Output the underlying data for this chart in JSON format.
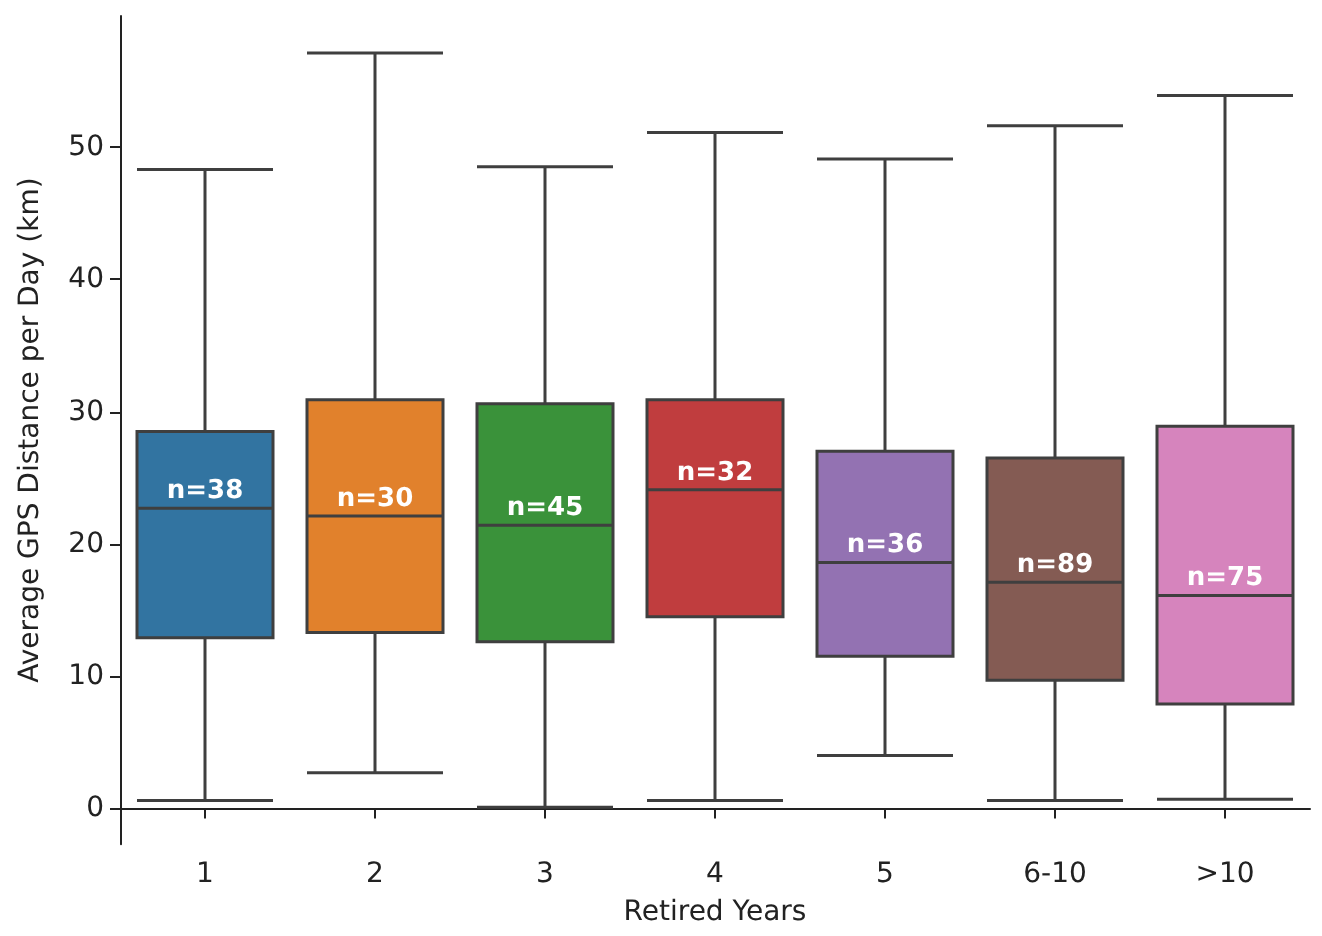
{
  "chart_data": {
    "type": "box",
    "xlabel": "Retired Years",
    "ylabel": "Average GPS Distance per Day (km)",
    "categories": [
      "1",
      "2",
      "3",
      "4",
      "5",
      "6-10",
      ">10"
    ],
    "colors": [
      "#3274a1",
      "#e1812c",
      "#3a923a",
      "#c03d3e",
      "#9372b2",
      "#845b53",
      "#d684bd"
    ],
    "boxes": [
      {
        "low": 0.6,
        "q1": 12.9,
        "median": 22.7,
        "q3": 28.5,
        "high": 48.3
      },
      {
        "low": 2.7,
        "q1": 13.3,
        "median": 22.1,
        "q3": 30.9,
        "high": 57.1
      },
      {
        "low": 0.1,
        "q1": 12.6,
        "median": 21.4,
        "q3": 30.6,
        "high": 48.5
      },
      {
        "low": 0.6,
        "q1": 14.5,
        "median": 24.1,
        "q3": 30.9,
        "high": 51.1
      },
      {
        "low": 4.0,
        "q1": 11.5,
        "median": 18.6,
        "q3": 27.0,
        "high": 49.1
      },
      {
        "low": 0.6,
        "q1": 9.7,
        "median": 17.1,
        "q3": 26.5,
        "high": 51.6
      },
      {
        "low": 0.7,
        "q1": 7.9,
        "median": 16.1,
        "q3": 28.9,
        "high": 53.9
      }
    ],
    "annotations": [
      {
        "text": "n=38",
        "x": "1",
        "y": 22.7
      },
      {
        "text": "n=30",
        "x": "2",
        "y": 22.1
      },
      {
        "text": "n=45",
        "x": "3",
        "y": 21.4
      },
      {
        "text": "n=32",
        "x": "4",
        "y": 24.1
      },
      {
        "text": "n=36",
        "x": "5",
        "y": 18.6
      },
      {
        "text": "n=89",
        "x": "6-10",
        "y": 17.1
      },
      {
        "text": "n=75",
        "x": ">10",
        "y": 16.1
      }
    ],
    "ylim": [
      -2.7,
      59.9
    ],
    "yticks": [
      0,
      10,
      20,
      30,
      40,
      50
    ],
    "grid": false
  }
}
